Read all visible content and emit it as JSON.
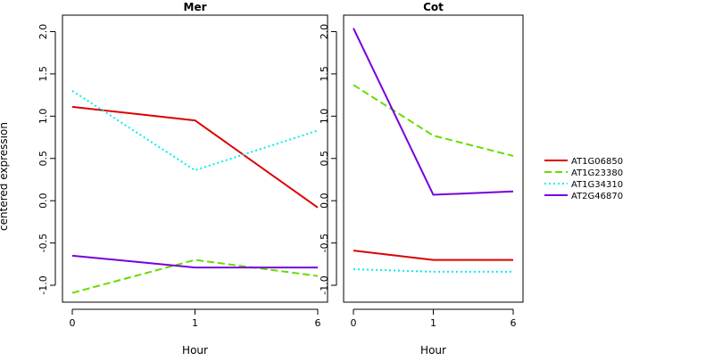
{
  "chart_data": {
    "type": "line",
    "ylabel": "centered expression",
    "xlabel": "Hour",
    "x_positions": [
      0,
      1,
      2
    ],
    "x_tick_labels": [
      "0",
      "1",
      "6"
    ],
    "ylim": [
      -1.2,
      2.1
    ],
    "y_ticks": [
      -1.0,
      -0.5,
      0.0,
      0.5,
      1.0,
      1.5,
      2.0
    ],
    "y_tick_labels": [
      "-1.0",
      "-0.5",
      "0.0",
      "0.5",
      "1.0",
      "1.5",
      "2.0"
    ],
    "legend_position": "right",
    "series_styles": [
      {
        "name": "AT1G06850",
        "color": "#dd0000",
        "dash": "solid"
      },
      {
        "name": "AT1G23380",
        "color": "#66dd00",
        "dash": "dashed"
      },
      {
        "name": "AT1G34310",
        "color": "#00eeee",
        "dash": "dotted"
      },
      {
        "name": "AT2G46870",
        "color": "#7700dd",
        "dash": "solid"
      }
    ],
    "panels": [
      {
        "title": "Mer",
        "series": [
          {
            "name": "AT1G06850",
            "values": [
              1.11,
              0.95,
              -0.08
            ]
          },
          {
            "name": "AT1G23380",
            "values": [
              -1.09,
              -0.7,
              -0.89
            ]
          },
          {
            "name": "AT1G34310",
            "values": [
              1.3,
              0.36,
              0.83
            ]
          },
          {
            "name": "AT2G46870",
            "values": [
              -0.65,
              -0.79,
              -0.79
            ]
          }
        ]
      },
      {
        "title": "Cot",
        "series": [
          {
            "name": "AT1G06850",
            "values": [
              -0.59,
              -0.7,
              -0.7
            ]
          },
          {
            "name": "AT1G23380",
            "values": [
              1.37,
              0.77,
              0.53
            ]
          },
          {
            "name": "AT1G34310",
            "values": [
              -0.81,
              -0.84,
              -0.84
            ]
          },
          {
            "name": "AT2G46870",
            "values": [
              2.04,
              0.07,
              0.11
            ]
          }
        ]
      }
    ]
  }
}
